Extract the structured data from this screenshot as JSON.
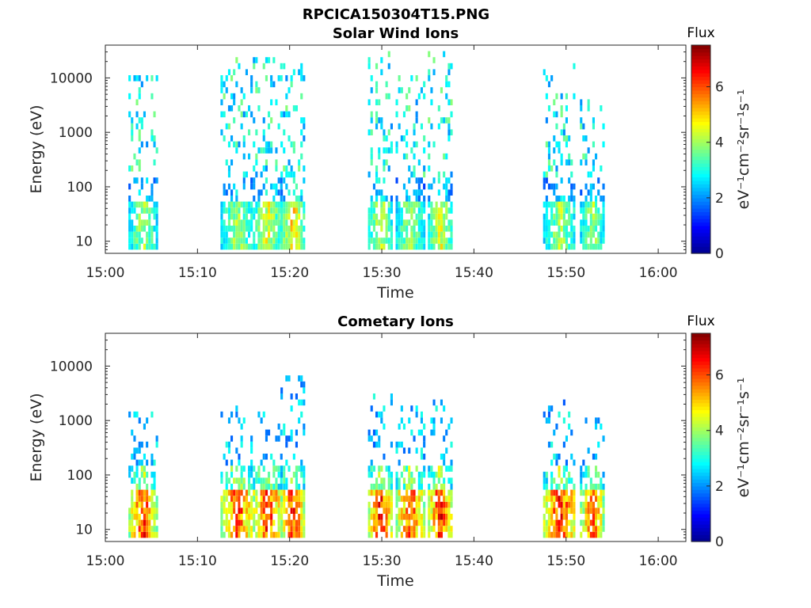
{
  "figure": {
    "title": "RPCICA150304T15.PNG"
  },
  "chart_data": [
    {
      "type": "heatmap",
      "title": "Solar Wind Ions",
      "xlabel": "Time",
      "ylabel": "Energy (eV)",
      "x_ticks": [
        "15:00",
        "15:10",
        "15:20",
        "15:30",
        "15:40",
        "15:50",
        "16:00"
      ],
      "xlim": [
        "15:00",
        "16:03"
      ],
      "y_scale": "log",
      "y_ticks": [
        10,
        100,
        1000,
        10000
      ],
      "y_tick_labels": [
        "10",
        "100",
        "1000",
        "10000"
      ],
      "ylim": [
        6,
        40000
      ],
      "colorbar": {
        "title": "Flux",
        "label": "eV⁻¹cm⁻²sr⁻¹s⁻¹",
        "range": [
          0,
          7.5
        ],
        "ticks": [
          0,
          2,
          4,
          6
        ],
        "colormap": "jet",
        "colors": [
          "#00008f",
          "#0000ff",
          "#0080ff",
          "#00ffff",
          "#80ff80",
          "#ffff00",
          "#ff8000",
          "#ff0000",
          "#800000"
        ]
      },
      "activity_bursts": [
        {
          "start": "15:02.5",
          "end": "15:05.5",
          "emax": 10000,
          "peak": 4.5
        },
        {
          "start": "15:12.5",
          "end": "15:16",
          "emax": 20000,
          "peak": 4.5
        },
        {
          "start": "15:16",
          "end": "15:19",
          "emax": 20000,
          "peak": 5
        },
        {
          "start": "15:19",
          "end": "15:21.5",
          "emax": 15000,
          "peak": 5.5
        },
        {
          "start": "15:28.5",
          "end": "15:31",
          "emax": 30000,
          "peak": 4.8
        },
        {
          "start": "15:31.5",
          "end": "15:34.5",
          "emax": 10000,
          "peak": 4.5
        },
        {
          "start": "15:35",
          "end": "15:37.5",
          "emax": 30000,
          "peak": 5
        },
        {
          "start": "15:47.5",
          "end": "15:51",
          "emax": 15000,
          "peak": 4.5
        },
        {
          "start": "15:51.5",
          "end": "15:54",
          "emax": 3500,
          "peak": 4.5
        }
      ]
    },
    {
      "type": "heatmap",
      "title": "Cometary Ions",
      "xlabel": "Time",
      "ylabel": "Energy (eV)",
      "x_ticks": [
        "15:00",
        "15:10",
        "15:20",
        "15:30",
        "15:40",
        "15:50",
        "16:00"
      ],
      "xlim": [
        "15:00",
        "16:03"
      ],
      "y_scale": "log",
      "y_ticks": [
        10,
        100,
        1000,
        10000
      ],
      "y_tick_labels": [
        "10",
        "100",
        "1000",
        "10000"
      ],
      "ylim": [
        6,
        40000
      ],
      "colorbar": {
        "title": "Flux",
        "label": "eV⁻¹cm⁻²sr⁻¹s⁻¹",
        "range": [
          0,
          7.5
        ],
        "ticks": [
          0,
          2,
          4,
          6
        ],
        "colormap": "jet",
        "colors": [
          "#00008f",
          "#0000ff",
          "#0080ff",
          "#00ffff",
          "#80ff80",
          "#ffff00",
          "#ff8000",
          "#ff0000",
          "#800000"
        ]
      },
      "activity_bursts": [
        {
          "start": "15:02.5",
          "end": "15:05.5",
          "emax": 1200,
          "peak": 6.8
        },
        {
          "start": "15:12.5",
          "end": "15:16",
          "emax": 1500,
          "peak": 6.8
        },
        {
          "start": "15:16",
          "end": "15:19",
          "emax": 1600,
          "peak": 7
        },
        {
          "start": "15:19",
          "end": "15:21.5",
          "emax": 6000,
          "peak": 7
        },
        {
          "start": "15:28.5",
          "end": "15:31",
          "emax": 2500,
          "peak": 7
        },
        {
          "start": "15:31.5",
          "end": "15:34.5",
          "emax": 1500,
          "peak": 6.8
        },
        {
          "start": "15:35",
          "end": "15:37.5",
          "emax": 2200,
          "peak": 7
        },
        {
          "start": "15:47.5",
          "end": "15:51",
          "emax": 2000,
          "peak": 7
        },
        {
          "start": "15:51.5",
          "end": "15:54",
          "emax": 1100,
          "peak": 6.5
        }
      ]
    }
  ]
}
